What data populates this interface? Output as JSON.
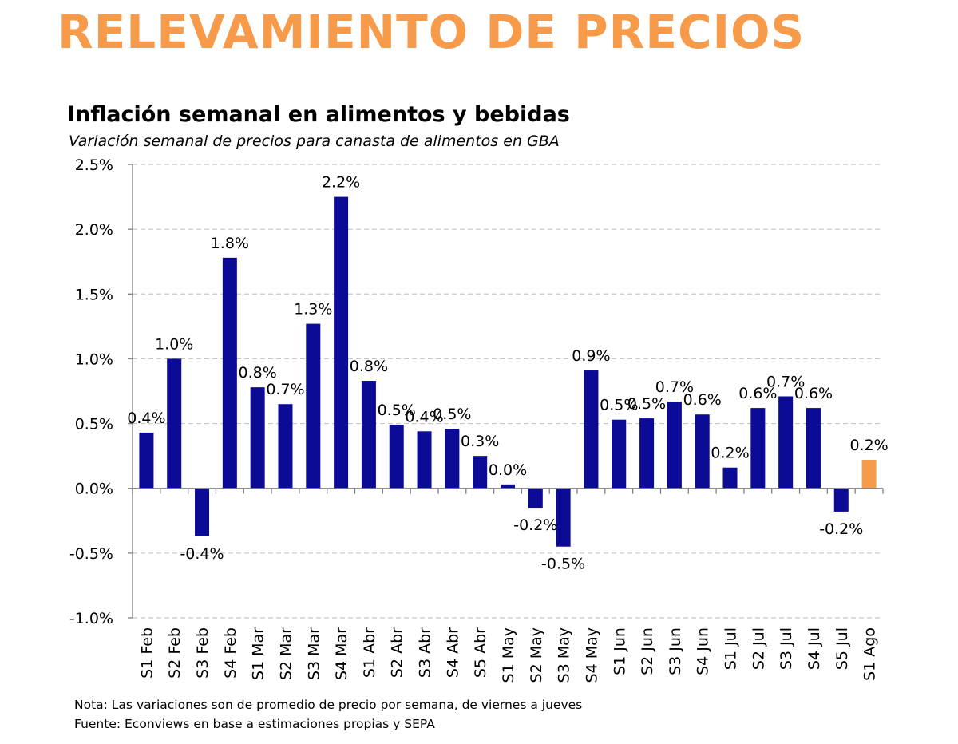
{
  "header": {
    "banner": "RELEVAMIENTO DE PRECIOS"
  },
  "chart_data": {
    "type": "bar",
    "title": "Inflación semanal en alimentos y bebidas",
    "subtitle": "Variación semanal de precios para canasta de alimentos en GBA",
    "xlabel": "",
    "ylabel": "",
    "ylim": [
      -1.0,
      2.5
    ],
    "yticks": [
      "2.5%",
      "2.0%",
      "1.5%",
      "1.0%",
      "0.5%",
      "0.0%",
      "-0.5%",
      "-1.0%"
    ],
    "ytick_values": [
      2.5,
      2.0,
      1.5,
      1.0,
      0.5,
      0.0,
      -0.5,
      -1.0
    ],
    "grid": "horizontal dashed",
    "categories": [
      "S1 Feb",
      "S2 Feb",
      "S3 Feb",
      "S4 Feb",
      "S1 Mar",
      "S2 Mar",
      "S3 Mar",
      "S4 Mar",
      "S1 Abr",
      "S2 Abr",
      "S3 Abr",
      "S4 Abr",
      "S5 Abr",
      "S1 May",
      "S2 May",
      "S3 May",
      "S4 May",
      "S1 Jun",
      "S2 Jun",
      "S3 Jun",
      "S4 Jun",
      "S1 Jul",
      "S2 Jul",
      "S3 Jul",
      "S4 Jul",
      "S5 Jul",
      "S1 Ago"
    ],
    "values": [
      0.43,
      1.0,
      -0.37,
      1.78,
      0.78,
      0.65,
      1.27,
      2.25,
      0.83,
      0.49,
      0.44,
      0.46,
      0.25,
      0.03,
      -0.15,
      -0.45,
      0.91,
      0.53,
      0.54,
      0.67,
      0.57,
      0.16,
      0.62,
      0.71,
      0.62,
      -0.18,
      0.22
    ],
    "labels": [
      "0.4%",
      "1.0%",
      "-0.4%",
      "1.8%",
      "0.8%",
      "0.7%",
      "1.3%",
      "2.2%",
      "0.8%",
      "0.5%",
      "0.4%",
      "0.5%",
      "0.3%",
      "0.0%",
      "-0.2%",
      "-0.5%",
      "0.9%",
      "0.5%",
      "0.5%",
      "0.7%",
      "0.6%",
      "0.2%",
      "0.6%",
      "0.7%",
      "0.6%",
      "-0.2%",
      "0.2%"
    ],
    "colors": {
      "default": "#0b0b96",
      "highlight": "#f79a4a",
      "grid": "#c8c8c8",
      "axis": "#7f7f7f"
    },
    "highlight_index": 26
  },
  "notes": {
    "nota": "Nota: Las variaciones son de promedio de precio por semana, de viernes a jueves",
    "fuente": "Fuente: Econviews en base a estimaciones propias y SEPA"
  }
}
